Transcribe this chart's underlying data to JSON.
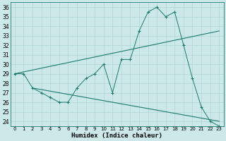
{
  "xlabel": "Humidex (Indice chaleur)",
  "bg_color": "#cde8e8",
  "line_color": "#1a7a6e",
  "xlim": [
    -0.5,
    23.5
  ],
  "ylim": [
    23.5,
    36.5
  ],
  "xticks": [
    0,
    1,
    2,
    3,
    4,
    5,
    6,
    7,
    8,
    9,
    10,
    11,
    12,
    13,
    14,
    15,
    16,
    17,
    18,
    19,
    20,
    21,
    22,
    23
  ],
  "yticks": [
    24,
    25,
    26,
    27,
    28,
    29,
    30,
    31,
    32,
    33,
    34,
    35,
    36
  ],
  "main_x": [
    0,
    1,
    2,
    3,
    4,
    5,
    6,
    7,
    8,
    9,
    10,
    11,
    12,
    13,
    14,
    15,
    16,
    17,
    18,
    19,
    20,
    21,
    22,
    23
  ],
  "main_y": [
    29,
    29,
    27.5,
    27,
    26.5,
    26,
    26,
    27.5,
    28.5,
    29,
    30,
    27,
    30.5,
    30.5,
    33.5,
    35.5,
    36,
    35,
    35.5,
    32,
    28.5,
    25.5,
    24,
    23.5
  ],
  "line2_x": [
    0,
    23
  ],
  "line2_y": [
    29,
    33.5
  ],
  "line3_x": [
    2,
    23
  ],
  "line3_y": [
    27.5,
    24
  ],
  "grid_color": "#b0d4d4",
  "grid_color2": "#c0dcdc",
  "marker": "+"
}
